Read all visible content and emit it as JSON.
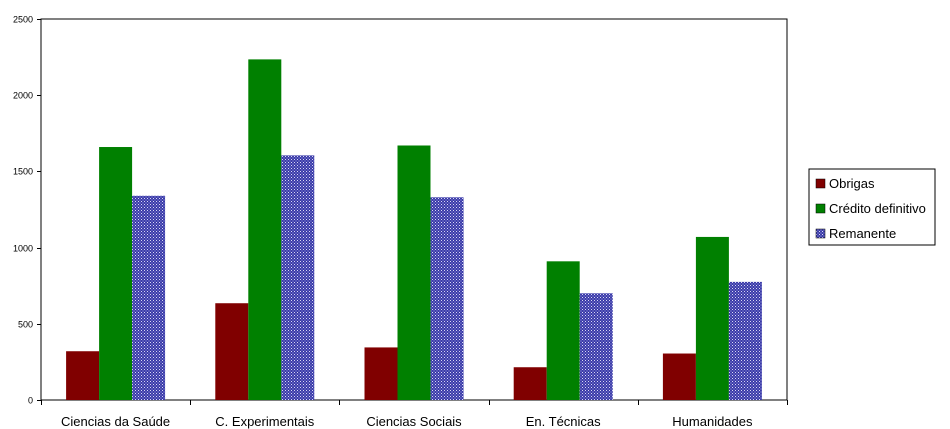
{
  "chart_data": {
    "type": "bar",
    "categories": [
      "Ciencias da Saúde",
      "C. Experimentais",
      "Ciencias Sociais",
      "En. Técnicas",
      "Humanidades"
    ],
    "series": [
      {
        "name": "Obrigas",
        "values": [
          320,
          635,
          345,
          215,
          305
        ],
        "color": "#800000",
        "pattern": "solid"
      },
      {
        "name": "Crédito definitivo",
        "values": [
          1660,
          2235,
          1670,
          910,
          1070
        ],
        "color": "#008000",
        "pattern": "solid"
      },
      {
        "name": "Remanente",
        "values": [
          1340,
          1605,
          1330,
          700,
          775
        ],
        "color": "#3a3aa8",
        "pattern": "dotted"
      }
    ],
    "ylim": [
      0,
      2500
    ],
    "yticks": [
      0,
      500,
      1000,
      1500,
      2000,
      2500
    ],
    "grid": false,
    "legend_position": "right"
  }
}
